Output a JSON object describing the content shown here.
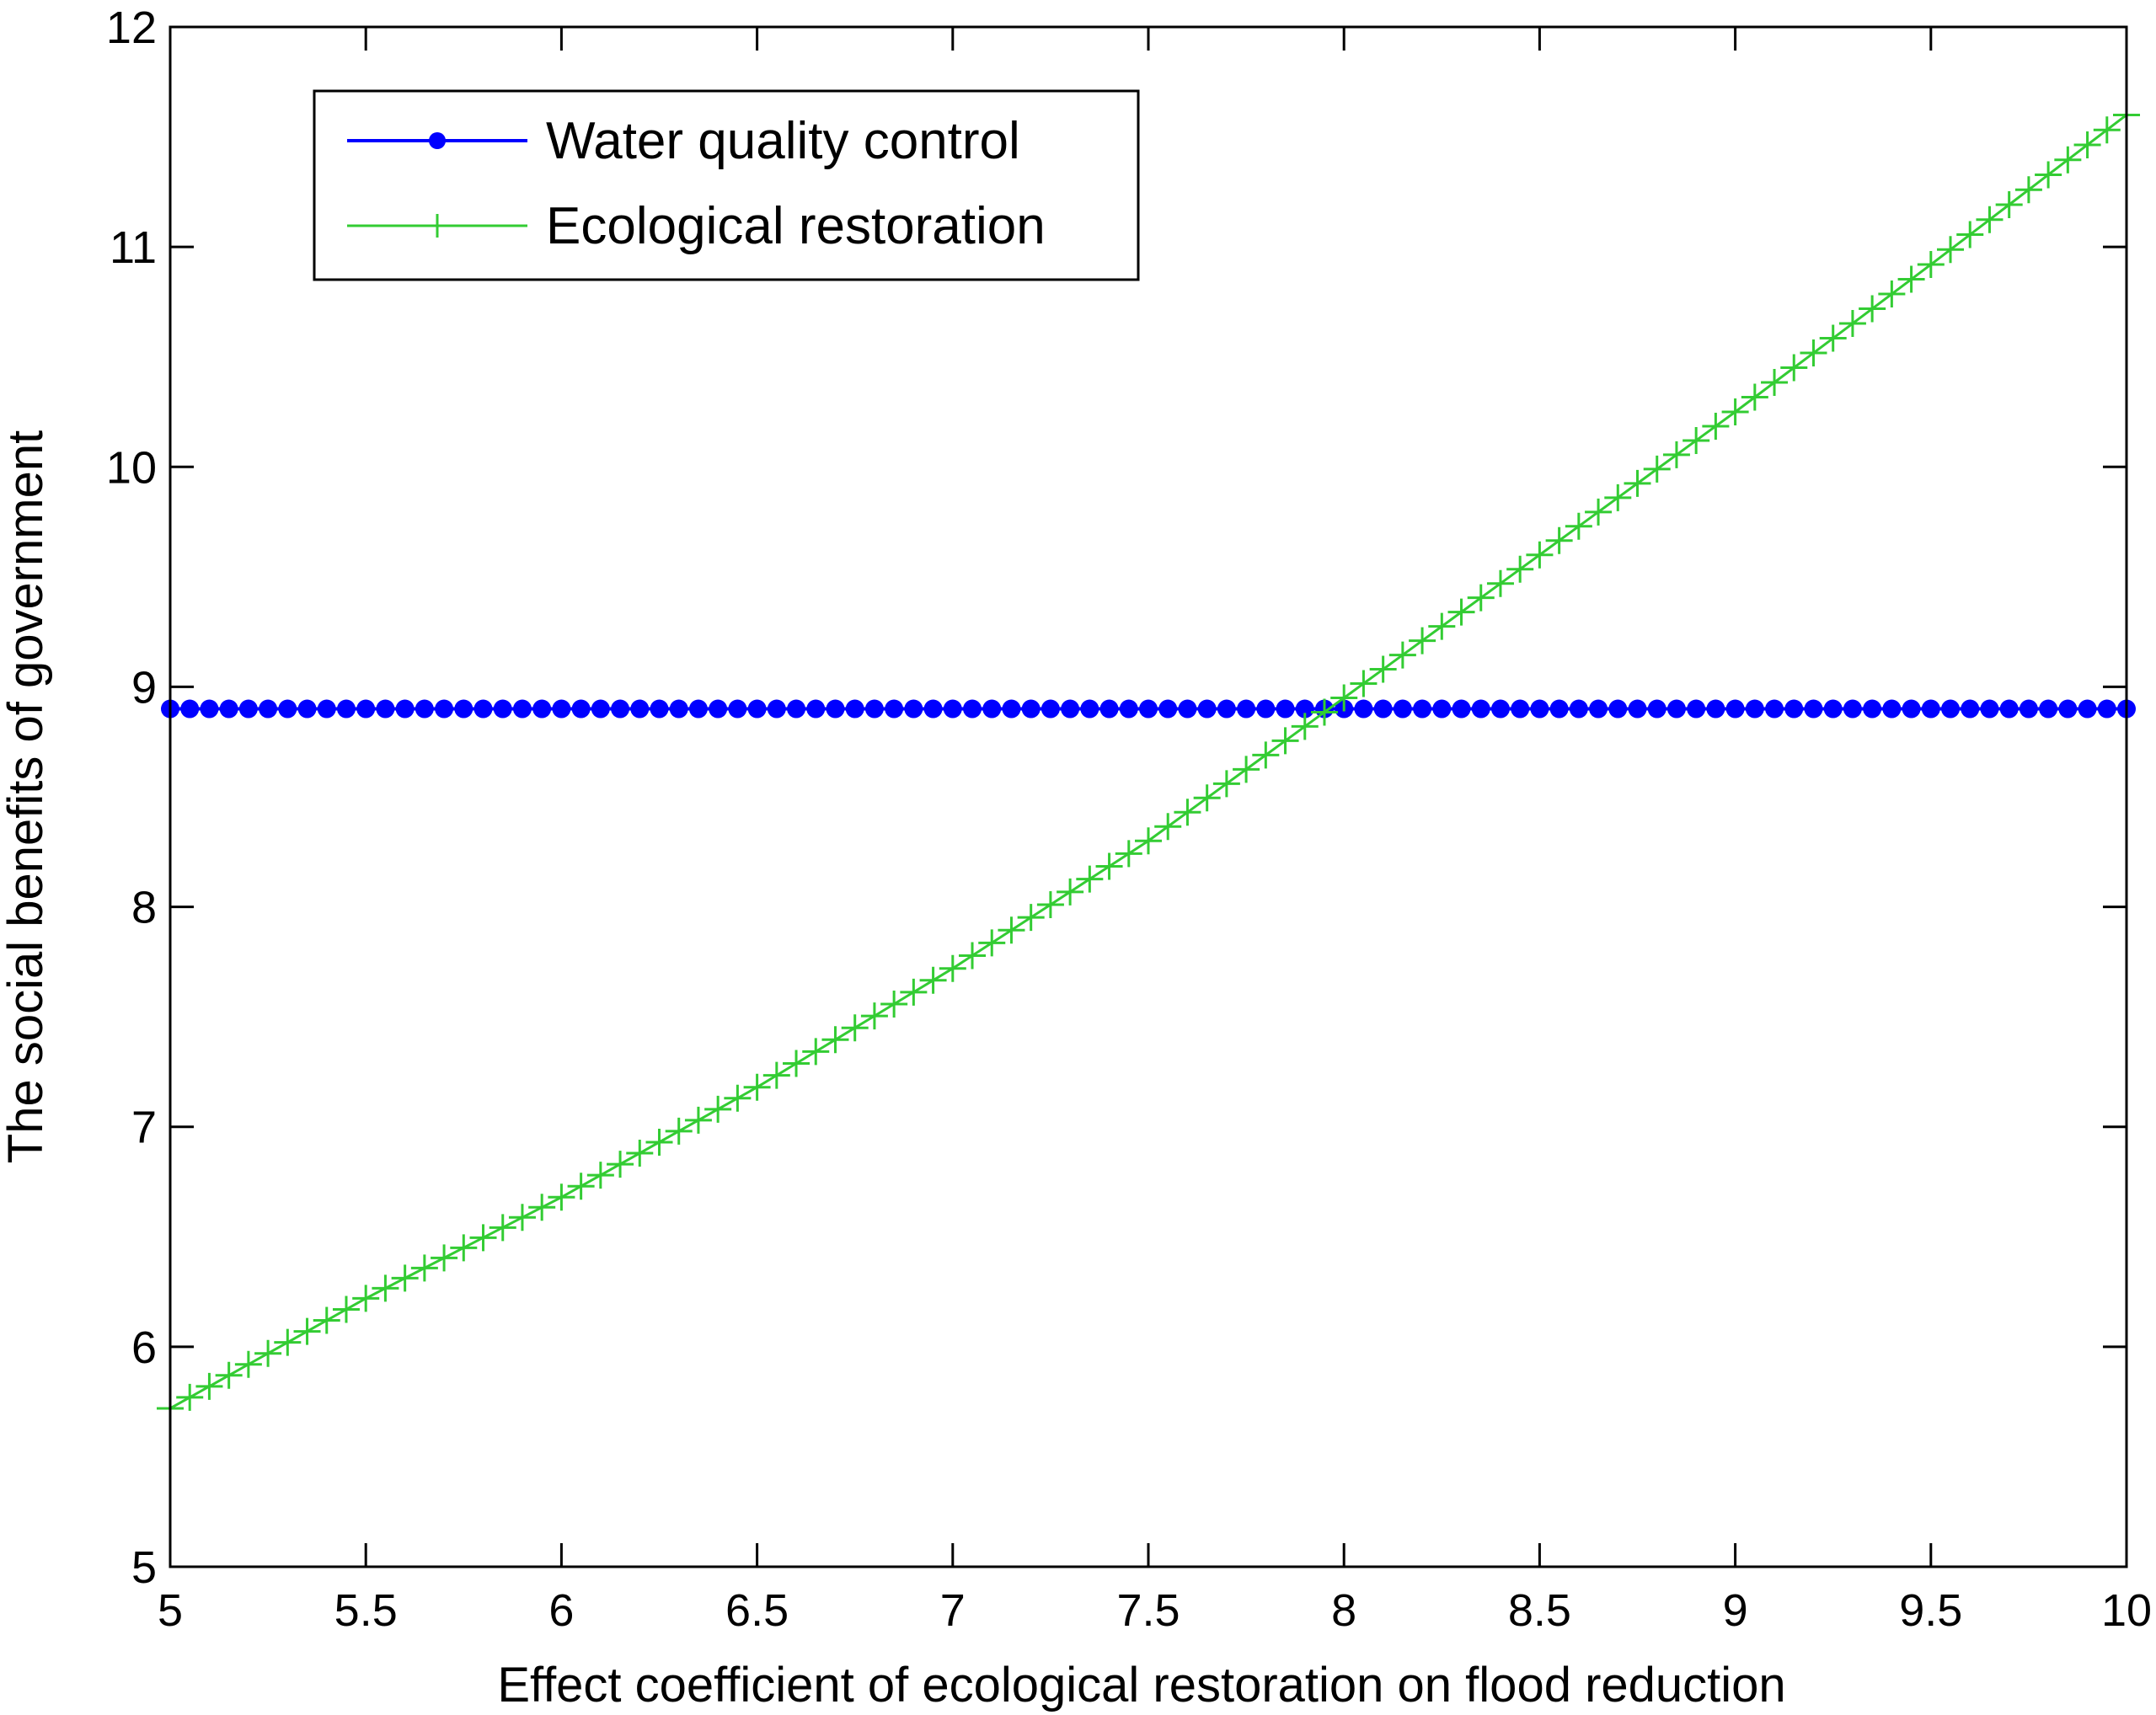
{
  "chart_data": {
    "type": "line",
    "title": "",
    "xlabel": "Effect coefficient of ecological restoration on flood reduction",
    "ylabel": "The social benefits of government",
    "xlim": [
      5,
      10
    ],
    "ylim": [
      5,
      12
    ],
    "xticks": [
      5,
      5.5,
      6,
      6.5,
      7,
      7.5,
      8,
      8.5,
      9,
      9.5,
      10
    ],
    "xtick_labels": [
      "5",
      "5.5",
      "6",
      "6.5",
      "7",
      "7.5",
      "8",
      "8.5",
      "9",
      "9.5",
      "10"
    ],
    "yticks": [
      5,
      6,
      7,
      8,
      9,
      10,
      11,
      12
    ],
    "ytick_labels": [
      "5",
      "6",
      "7",
      "8",
      "9",
      "10",
      "11",
      "12"
    ],
    "grid": false,
    "legend_position": "top-left",
    "series": [
      {
        "name": "Water quality control",
        "color": "#0000ff",
        "marker": "circle",
        "x": [
          5.0,
          10.0
        ],
        "y": [
          8.9,
          8.9
        ],
        "points_count": 101
      },
      {
        "name": "Ecological restoration",
        "color": "#33cc33",
        "marker": "plus",
        "x": [
          5.0,
          5.5,
          6.0,
          6.5,
          7.0,
          7.5,
          8.0,
          8.5,
          9.0,
          9.5,
          10.0
        ],
        "y": [
          5.72,
          6.22,
          6.68,
          7.18,
          7.72,
          8.3,
          8.95,
          9.6,
          10.25,
          10.92,
          11.6
        ],
        "points_count": 101
      }
    ]
  }
}
